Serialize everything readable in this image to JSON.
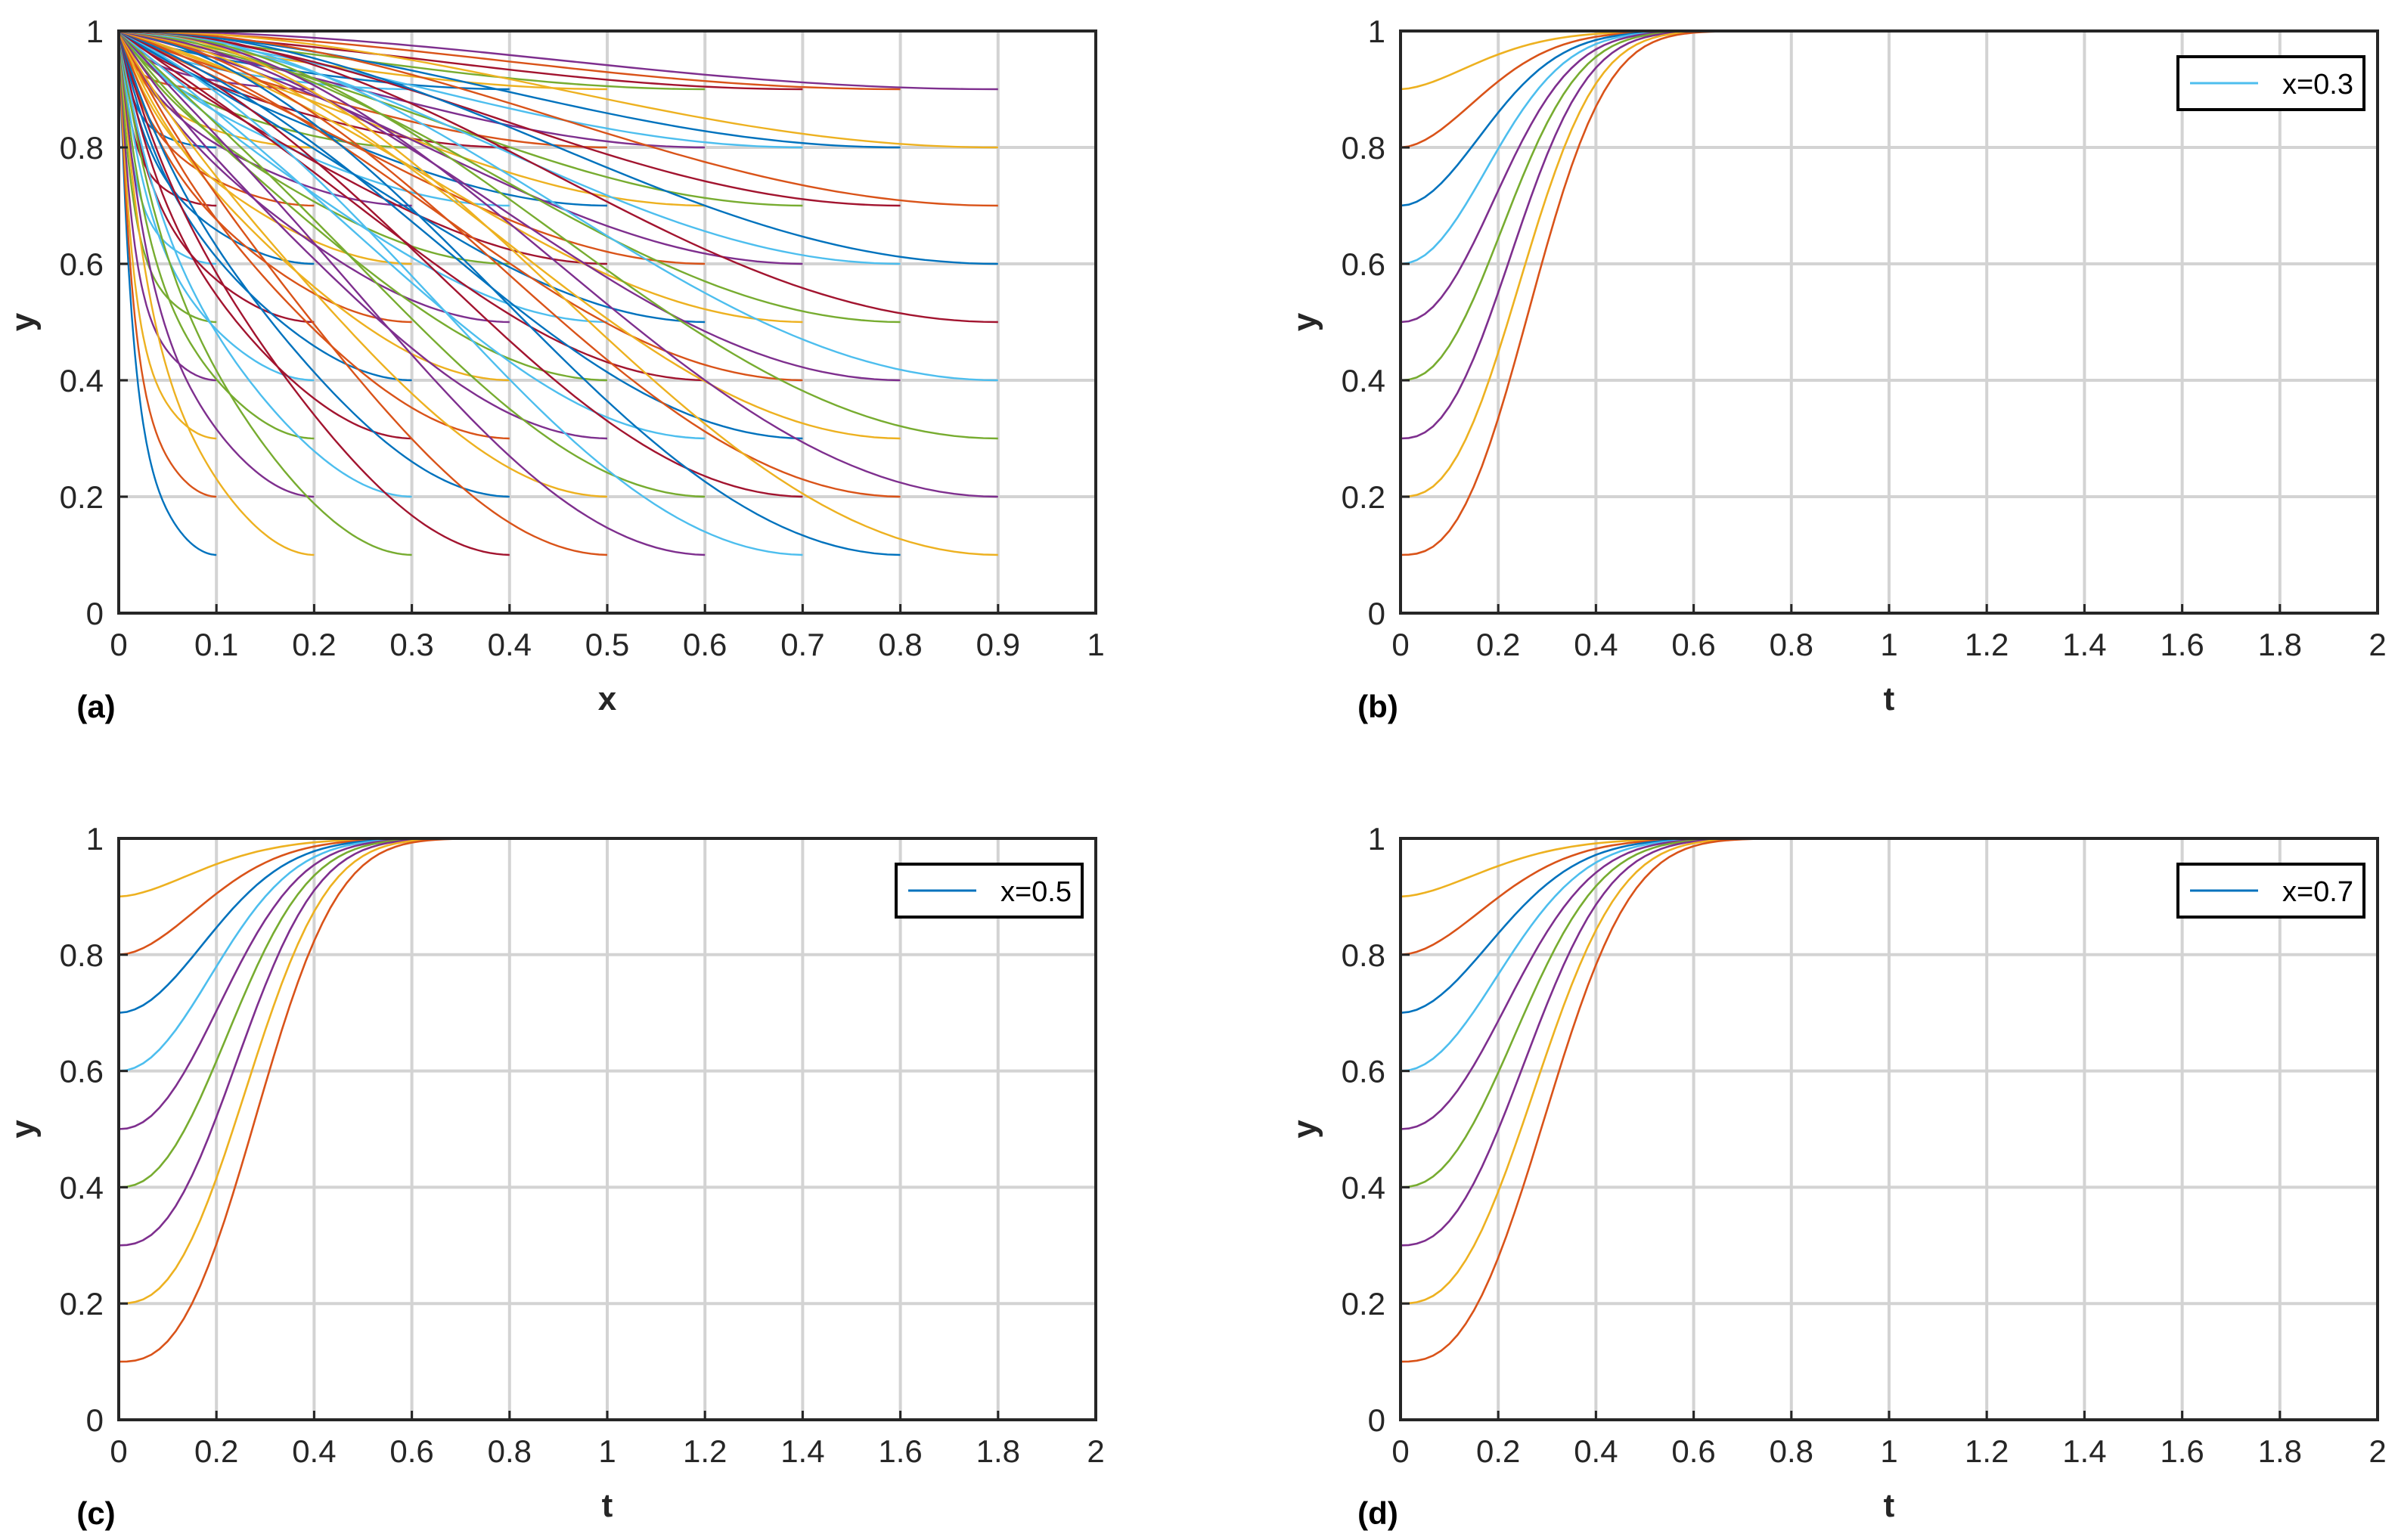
{
  "colors": {
    "palette": [
      "#0072BD",
      "#D95319",
      "#EDB120",
      "#7E2F8E",
      "#77AC30",
      "#4DBEEE",
      "#A2142F"
    ],
    "grid": "#d3d3d3",
    "axis": "#262626"
  },
  "chart_data": [
    {
      "type": "line",
      "panel_label": "(a)",
      "xlabel": "x",
      "ylabel": "y",
      "xlim": [
        0,
        1
      ],
      "ylim": [
        0,
        1
      ],
      "xticks": [
        "0",
        "0.1",
        "0.2",
        "0.3",
        "0.4",
        "0.5",
        "0.6",
        "0.7",
        "0.8",
        "0.9",
        "1"
      ],
      "yticks": [
        "0",
        "0.2",
        "0.4",
        "0.6",
        "0.8",
        "1"
      ],
      "grid": true,
      "legend": null,
      "description_values": {
        "x_segment_ends": [
          0.1,
          0.2,
          0.3,
          0.4,
          0.5,
          0.6,
          0.7,
          0.8,
          0.9
        ],
        "curve_end_values": [
          0.1,
          0.2,
          0.3,
          0.4,
          0.5,
          0.6,
          0.7,
          0.8,
          0.9
        ],
        "curve_start_value": 1
      }
    },
    {
      "type": "line",
      "panel_label": "(b)",
      "xlabel": "t",
      "ylabel": "y",
      "xlim": [
        0,
        2
      ],
      "ylim": [
        0,
        1
      ],
      "xticks": [
        "0",
        "0.2",
        "0.4",
        "0.6",
        "0.8",
        "1",
        "1.2",
        "1.4",
        "1.6",
        "1.8",
        "2"
      ],
      "yticks": [
        "0",
        "0.2",
        "0.4",
        "0.6",
        "0.8",
        "1"
      ],
      "grid": true,
      "legend": {
        "entries": [
          "x=0.3"
        ],
        "placement": "top-right"
      },
      "initial_values": [
        0.9,
        0.8,
        0.7,
        0.6,
        0.5,
        0.4,
        0.3,
        0.2,
        0.1
      ],
      "steady_value": 1
    },
    {
      "type": "line",
      "panel_label": "(c)",
      "xlabel": "t",
      "ylabel": "y",
      "xlim": [
        0,
        2
      ],
      "ylim": [
        0,
        1
      ],
      "xticks": [
        "0",
        "0.2",
        "0.4",
        "0.6",
        "0.8",
        "1",
        "1.2",
        "1.4",
        "1.6",
        "1.8",
        "2"
      ],
      "yticks": [
        "0",
        "0.2",
        "0.4",
        "0.6",
        "0.8",
        "1"
      ],
      "grid": true,
      "legend": {
        "entries": [
          "x=0.5"
        ],
        "placement": "top-right"
      },
      "initial_values": [
        0.9,
        0.8,
        0.7,
        0.6,
        0.5,
        0.4,
        0.3,
        0.2,
        0.1
      ],
      "steady_value": 1
    },
    {
      "type": "line",
      "panel_label": "(d)",
      "xlabel": "t",
      "ylabel": "y",
      "xlim": [
        0,
        2
      ],
      "ylim": [
        0,
        1
      ],
      "xticks": [
        "0",
        "0.2",
        "0.4",
        "0.6",
        "0.8",
        "1",
        "1.2",
        "1.4",
        "1.6",
        "1.8",
        "2"
      ],
      "yticks": [
        "0",
        "0.2",
        "0.4",
        "0.6",
        "0.8",
        "1"
      ],
      "grid": true,
      "legend": {
        "entries": [
          "x=0.7"
        ],
        "placement": "top-right"
      },
      "initial_values": [
        0.9,
        0.8,
        0.7,
        0.6,
        0.5,
        0.4,
        0.3,
        0.2,
        0.1
      ],
      "steady_value": 1
    }
  ]
}
